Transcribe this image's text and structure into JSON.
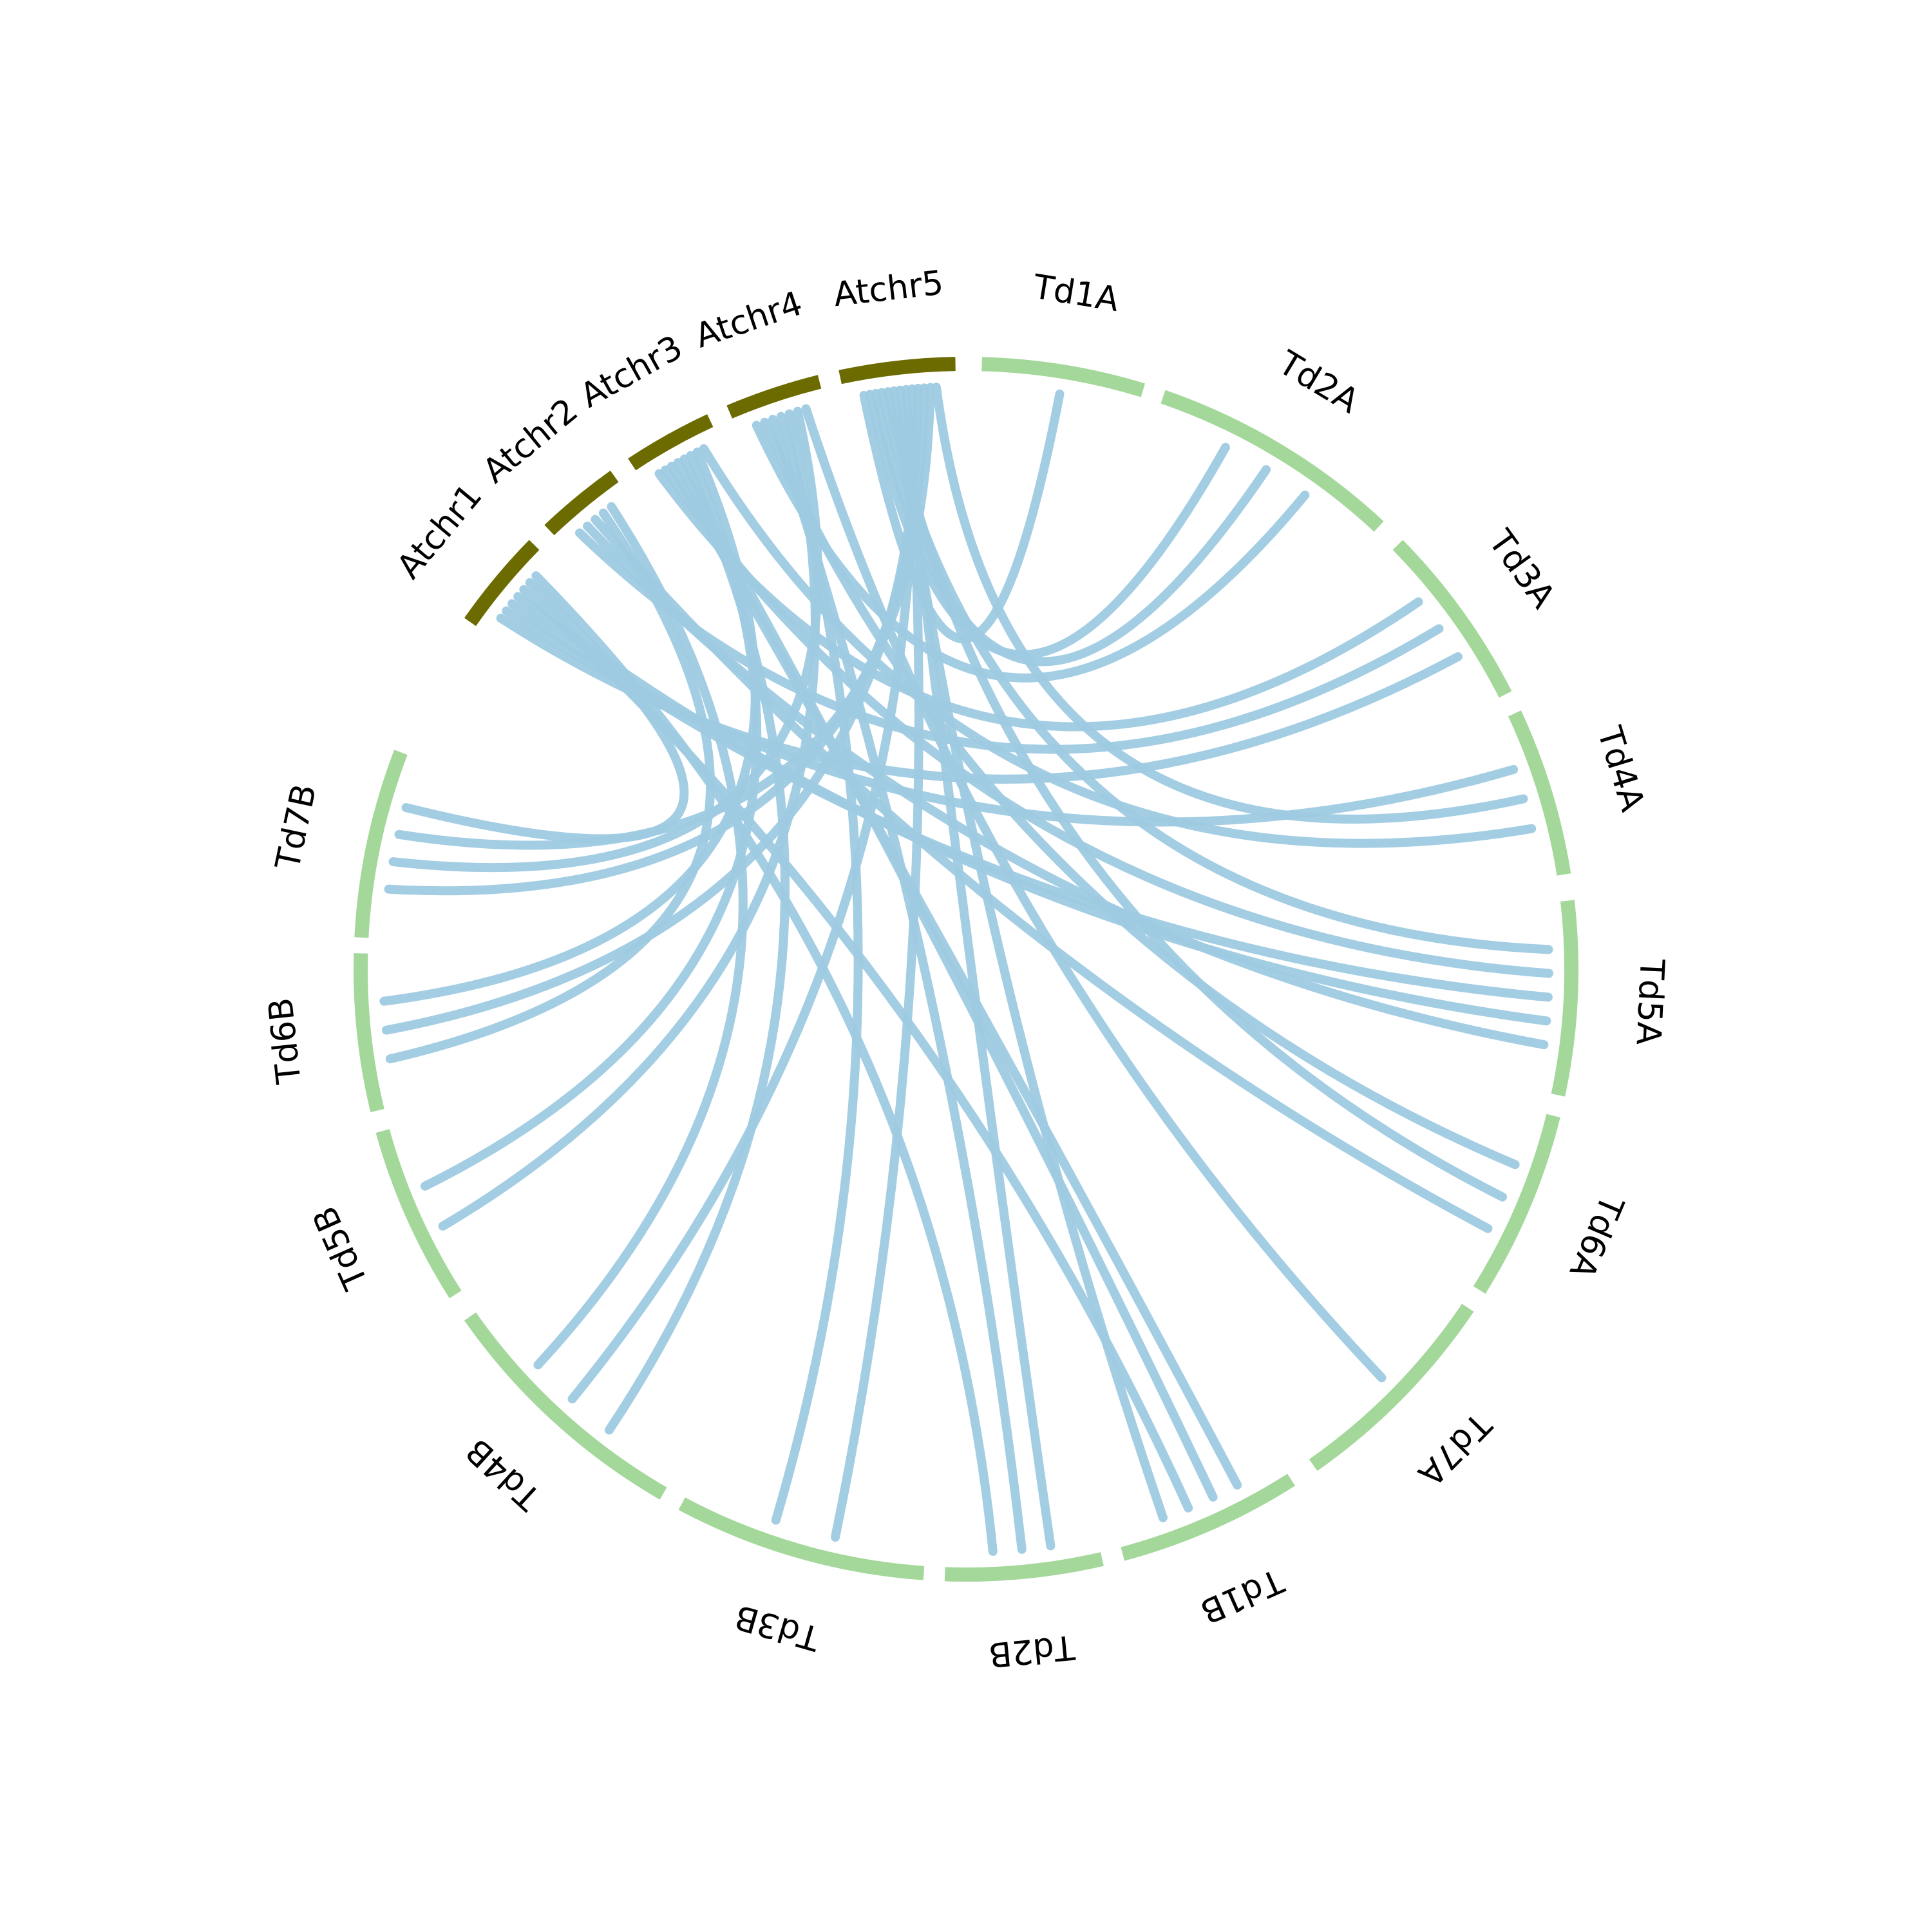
{
  "colors": {
    "arabidopsis": "#6b6b00",
    "wheat": "#a3d89a",
    "link": "#9ecae1"
  },
  "segments": [
    {
      "id": "Atchr1",
      "label": "Atchr1",
      "group": "arabidopsis"
    },
    {
      "id": "Atchr2",
      "label": "Atchr2",
      "group": "arabidopsis"
    },
    {
      "id": "Atchr3",
      "label": "Atchr3",
      "group": "arabidopsis"
    },
    {
      "id": "Atchr4",
      "label": "Atchr4",
      "group": "arabidopsis"
    },
    {
      "id": "Atchr5",
      "label": "Atchr5",
      "group": "arabidopsis"
    },
    {
      "id": "Td1A",
      "label": "Td1A",
      "group": "wheat"
    },
    {
      "id": "Td2A",
      "label": "Td2A",
      "group": "wheat"
    },
    {
      "id": "Td3A",
      "label": "Td3A",
      "group": "wheat"
    },
    {
      "id": "Td4A",
      "label": "Td4A",
      "group": "wheat"
    },
    {
      "id": "Td5A",
      "label": "Td5A",
      "group": "wheat"
    },
    {
      "id": "Td6A",
      "label": "Td6A",
      "group": "wheat"
    },
    {
      "id": "Td7A",
      "label": "Td7A",
      "group": "wheat"
    },
    {
      "id": "Td1B",
      "label": "Td1B",
      "group": "wheat"
    },
    {
      "id": "Td2B",
      "label": "Td2B",
      "group": "wheat"
    },
    {
      "id": "Td3B",
      "label": "Td3B",
      "group": "wheat"
    },
    {
      "id": "Td4B",
      "label": "Td4B",
      "group": "wheat"
    },
    {
      "id": "Td5B",
      "label": "Td5B",
      "group": "wheat"
    },
    {
      "id": "Td6B",
      "label": "Td6B",
      "group": "wheat"
    },
    {
      "id": "Td7B",
      "label": "Td7B",
      "group": "wheat"
    }
  ],
  "links": [
    {
      "from": "Atchr5",
      "to": "Td1A"
    },
    {
      "from": "Atchr5",
      "to": "Td2A"
    },
    {
      "from": "Atchr5",
      "to": "Td2A"
    },
    {
      "from": "Atchr4",
      "to": "Td2A"
    },
    {
      "from": "Atchr3",
      "to": "Td3A"
    },
    {
      "from": "Atchr2",
      "to": "Td3A"
    },
    {
      "from": "Atchr1",
      "to": "Td3A"
    },
    {
      "from": "Atchr1",
      "to": "Td4A"
    },
    {
      "from": "Atchr5",
      "to": "Td5A"
    },
    {
      "from": "Atchr3",
      "to": "Td5A"
    },
    {
      "from": "Atchr1",
      "to": "Td5A"
    },
    {
      "from": "Atchr1",
      "to": "Td5A"
    },
    {
      "from": "Atchr2",
      "to": "Td5A"
    },
    {
      "from": "Atchr4",
      "to": "Td6A"
    },
    {
      "from": "Atchr5",
      "to": "Td6A"
    },
    {
      "from": "Atchr2",
      "to": "Td6A"
    },
    {
      "from": "Atchr3",
      "to": "Td1B"
    },
    {
      "from": "Atchr3",
      "to": "Td1B"
    },
    {
      "from": "Atchr1",
      "to": "Td1B"
    },
    {
      "from": "Atchr5",
      "to": "Td1B"
    },
    {
      "from": "Atchr5",
      "to": "Td2B"
    },
    {
      "from": "Atchr4",
      "to": "Td2B"
    },
    {
      "from": "Atchr5",
      "to": "Td3B"
    },
    {
      "from": "Atchr4",
      "to": "Td3B"
    },
    {
      "from": "Atchr3",
      "to": "Td4B"
    },
    {
      "from": "Atchr5",
      "to": "Td4B"
    },
    {
      "from": "Atchr4",
      "to": "Td5B"
    },
    {
      "from": "Atchr3",
      "to": "Td5B"
    },
    {
      "from": "Atchr2",
      "to": "Td6B"
    },
    {
      "from": "Atchr5",
      "to": "Td6B"
    },
    {
      "from": "Atchr3",
      "to": "Td6B"
    },
    {
      "from": "Atchr5",
      "to": "Td7B"
    },
    {
      "from": "Atchr4",
      "to": "Td7B"
    },
    {
      "from": "Atchr5",
      "to": "Td7B"
    },
    {
      "from": "Atchr1",
      "to": "Td7B"
    },
    {
      "from": "Atchr5",
      "to": "Td4A"
    },
    {
      "from": "Atchr3",
      "to": "Td4A"
    },
    {
      "from": "Atchr4",
      "to": "Td7A"
    },
    {
      "from": "Atchr2",
      "to": "Td4B"
    },
    {
      "from": "Atchr1",
      "to": "Td2B"
    }
  ]
}
